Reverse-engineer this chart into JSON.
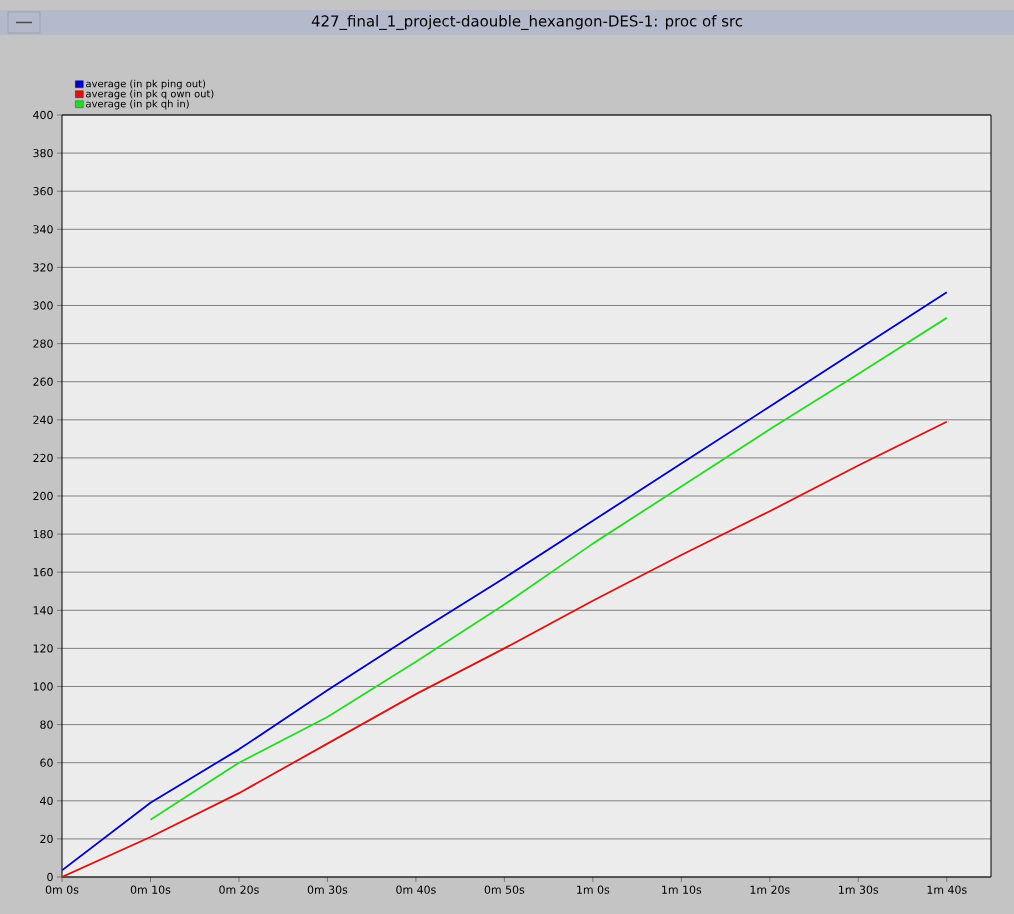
{
  "chart_data": {
    "type": "line",
    "title": "427_final_1_project-daouble_hexangon-DES-1: proc of src",
    "categories": [
      "0m 0s",
      "0m 10s",
      "0m 20s",
      "0m 30s",
      "0m 40s",
      "0m 50s",
      "1m 0s",
      "1m 10s",
      "1m 20s",
      "1m 30s",
      "1m 40s"
    ],
    "ylim": [
      0,
      400
    ],
    "yticks": [
      0,
      20,
      40,
      60,
      80,
      100,
      120,
      140,
      160,
      180,
      200,
      220,
      240,
      260,
      280,
      300,
      320,
      340,
      360,
      380,
      400
    ],
    "grid": "y",
    "legend": "top left",
    "marker": "none",
    "line_style": "solid",
    "series": [
      {
        "name": "average (in pk ping out)",
        "color": "#0000cc",
        "values": [
          3.5,
          39,
          67,
          98,
          128,
          157,
          187,
          217,
          247,
          277,
          307
        ]
      },
      {
        "name": "average (in pk q own out)",
        "color": "#e01010",
        "values": [
          0,
          21,
          44,
          70,
          96,
          120,
          145,
          169,
          192,
          216,
          239
        ]
      },
      {
        "name": "average (in pk qh in)",
        "color": "#22dd22",
        "values": [
          null,
          30,
          60,
          84,
          113,
          143,
          175,
          205,
          235,
          264,
          293.5
        ]
      }
    ]
  }
}
